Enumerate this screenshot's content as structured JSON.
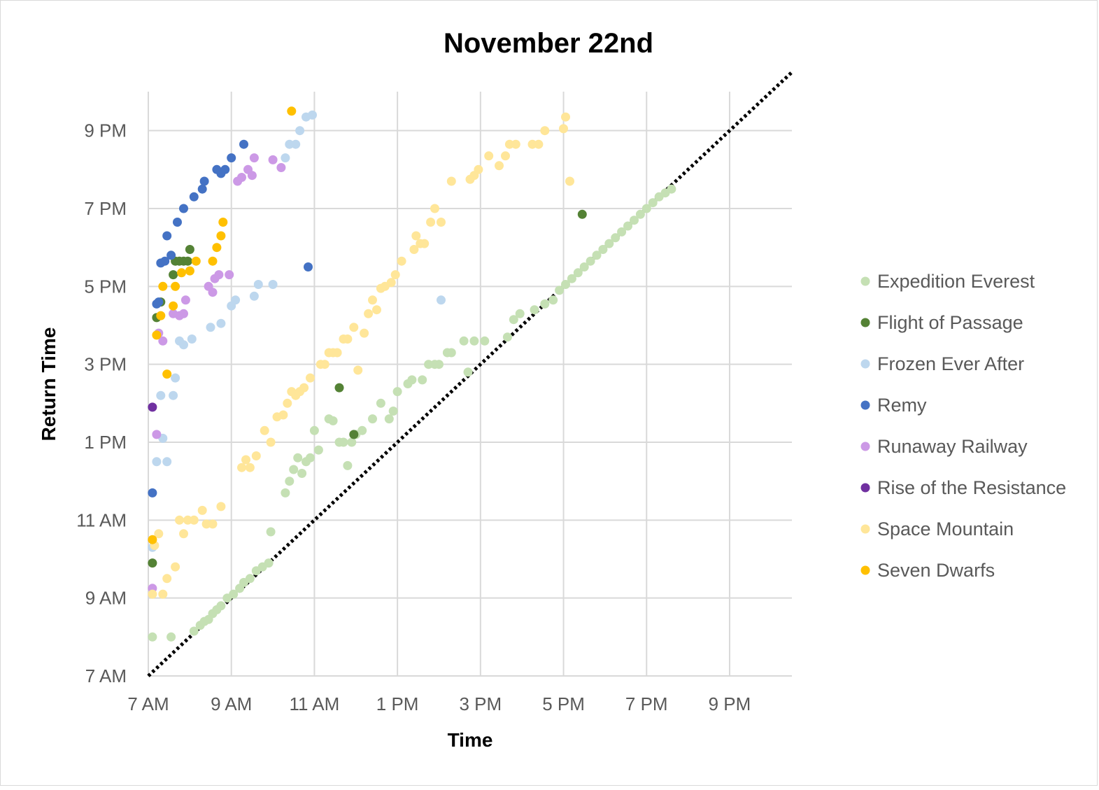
{
  "chart_data": {
    "type": "scatter",
    "title": "November 22nd",
    "xlabel": "Time",
    "ylabel": "Return Time",
    "xlim": [
      7,
      22.5
    ],
    "ylim": [
      7,
      22
    ],
    "x_ticks": [
      {
        "value": 7,
        "label": "7 AM"
      },
      {
        "value": 9,
        "label": "9 AM"
      },
      {
        "value": 11,
        "label": "11 AM"
      },
      {
        "value": 13,
        "label": "1 PM"
      },
      {
        "value": 15,
        "label": "3 PM"
      },
      {
        "value": 17,
        "label": "5 PM"
      },
      {
        "value": 19,
        "label": "7 PM"
      },
      {
        "value": 21,
        "label": "9 PM"
      }
    ],
    "y_ticks": [
      {
        "value": 7,
        "label": "7 AM"
      },
      {
        "value": 9,
        "label": "9 AM"
      },
      {
        "value": 11,
        "label": "11 AM"
      },
      {
        "value": 13,
        "label": "1 PM"
      },
      {
        "value": 15,
        "label": "3 PM"
      },
      {
        "value": 17,
        "label": "5 PM"
      },
      {
        "value": 19,
        "label": "7 PM"
      },
      {
        "value": 21,
        "label": "9 PM"
      }
    ],
    "reference_line": {
      "from": [
        7,
        7
      ],
      "to": [
        22.5,
        22.5
      ],
      "style": "dotted"
    },
    "grid": true,
    "legend_position": "right",
    "series": [
      {
        "name": "Expedition Everest",
        "color": "#c5e0b4",
        "points": [
          [
            7.1,
            8.0
          ],
          [
            7.55,
            8.0
          ],
          [
            8.1,
            8.15
          ],
          [
            8.25,
            8.3
          ],
          [
            8.35,
            8.4
          ],
          [
            8.45,
            8.45
          ],
          [
            8.55,
            8.6
          ],
          [
            8.65,
            8.7
          ],
          [
            8.75,
            8.8
          ],
          [
            8.9,
            9.0
          ],
          [
            9.05,
            9.1
          ],
          [
            9.2,
            9.25
          ],
          [
            9.3,
            9.4
          ],
          [
            9.45,
            9.5
          ],
          [
            9.6,
            9.7
          ],
          [
            9.75,
            9.8
          ],
          [
            9.9,
            9.9
          ],
          [
            9.95,
            10.7
          ],
          [
            10.3,
            11.7
          ],
          [
            10.4,
            12.0
          ],
          [
            10.5,
            12.3
          ],
          [
            10.6,
            12.6
          ],
          [
            10.7,
            12.2
          ],
          [
            10.8,
            12.5
          ],
          [
            10.9,
            12.6
          ],
          [
            11.0,
            13.3
          ],
          [
            11.1,
            12.8
          ],
          [
            11.35,
            13.6
          ],
          [
            11.45,
            13.55
          ],
          [
            11.6,
            13.0
          ],
          [
            11.7,
            13.0
          ],
          [
            11.8,
            12.4
          ],
          [
            11.9,
            13.0
          ],
          [
            12.0,
            13.2
          ],
          [
            12.15,
            13.3
          ],
          [
            12.4,
            13.6
          ],
          [
            12.6,
            14.0
          ],
          [
            12.8,
            13.6
          ],
          [
            12.9,
            13.8
          ],
          [
            13.0,
            14.3
          ],
          [
            13.25,
            14.5
          ],
          [
            13.35,
            14.6
          ],
          [
            13.6,
            14.6
          ],
          [
            13.75,
            15.0
          ],
          [
            13.9,
            15.0
          ],
          [
            14.0,
            15.0
          ],
          [
            14.2,
            15.3
          ],
          [
            14.3,
            15.3
          ],
          [
            14.6,
            15.6
          ],
          [
            14.7,
            14.8
          ],
          [
            14.85,
            15.6
          ],
          [
            15.1,
            15.6
          ],
          [
            15.65,
            15.7
          ],
          [
            15.8,
            16.15
          ],
          [
            15.95,
            16.3
          ],
          [
            16.3,
            16.4
          ],
          [
            16.55,
            16.55
          ],
          [
            16.75,
            16.65
          ],
          [
            16.9,
            16.9
          ],
          [
            17.05,
            17.05
          ],
          [
            17.2,
            17.2
          ],
          [
            17.35,
            17.35
          ],
          [
            17.5,
            17.5
          ],
          [
            17.65,
            17.65
          ],
          [
            17.8,
            17.8
          ],
          [
            17.95,
            17.95
          ],
          [
            18.1,
            18.1
          ],
          [
            18.25,
            18.25
          ],
          [
            18.4,
            18.4
          ],
          [
            18.55,
            18.55
          ],
          [
            18.7,
            18.7
          ],
          [
            18.85,
            18.85
          ],
          [
            19.0,
            19.0
          ],
          [
            19.15,
            19.15
          ],
          [
            19.3,
            19.3
          ],
          [
            19.45,
            19.4
          ],
          [
            19.6,
            19.5
          ]
        ]
      },
      {
        "name": "Flight of Passage",
        "color": "#548235",
        "points": [
          [
            7.1,
            9.9
          ],
          [
            7.2,
            16.2
          ],
          [
            7.3,
            16.6
          ],
          [
            7.6,
            17.3
          ],
          [
            7.65,
            17.65
          ],
          [
            7.75,
            17.65
          ],
          [
            7.85,
            17.65
          ],
          [
            7.95,
            17.65
          ],
          [
            8.0,
            17.95
          ],
          [
            11.6,
            14.4
          ],
          [
            11.95,
            13.2
          ],
          [
            17.45,
            18.85
          ]
        ]
      },
      {
        "name": "Frozen Ever After",
        "color": "#bdd7ee",
        "points": [
          [
            7.1,
            10.3
          ],
          [
            7.2,
            12.5
          ],
          [
            7.3,
            14.2
          ],
          [
            7.35,
            13.1
          ],
          [
            7.45,
            12.5
          ],
          [
            7.6,
            14.2
          ],
          [
            7.65,
            14.65
          ],
          [
            7.75,
            15.6
          ],
          [
            7.85,
            15.5
          ],
          [
            8.05,
            15.65
          ],
          [
            8.5,
            15.95
          ],
          [
            8.75,
            16.05
          ],
          [
            9.0,
            16.5
          ],
          [
            9.1,
            16.65
          ],
          [
            9.55,
            16.75
          ],
          [
            9.65,
            17.05
          ],
          [
            10.0,
            17.05
          ],
          [
            10.3,
            20.3
          ],
          [
            10.4,
            20.65
          ],
          [
            10.55,
            20.65
          ],
          [
            10.65,
            21.0
          ],
          [
            10.8,
            21.35
          ],
          [
            10.95,
            21.4
          ],
          [
            14.05,
            16.65
          ]
        ]
      },
      {
        "name": "Remy",
        "color": "#4472c4",
        "points": [
          [
            7.1,
            11.7
          ],
          [
            7.2,
            16.55
          ],
          [
            7.25,
            16.6
          ],
          [
            7.3,
            17.6
          ],
          [
            7.4,
            17.65
          ],
          [
            7.45,
            18.3
          ],
          [
            7.55,
            17.8
          ],
          [
            7.7,
            18.65
          ],
          [
            7.85,
            19.0
          ],
          [
            8.1,
            19.3
          ],
          [
            8.3,
            19.5
          ],
          [
            8.35,
            19.7
          ],
          [
            8.65,
            20.0
          ],
          [
            8.75,
            19.9
          ],
          [
            8.85,
            20.0
          ],
          [
            9.0,
            20.3
          ],
          [
            9.3,
            20.65
          ],
          [
            10.85,
            17.5
          ]
        ]
      },
      {
        "name": "Runaway Railway",
        "color": "#cc99e6",
        "points": [
          [
            7.1,
            9.25
          ],
          [
            7.2,
            13.2
          ],
          [
            7.25,
            15.8
          ],
          [
            7.35,
            15.6
          ],
          [
            7.6,
            16.3
          ],
          [
            7.75,
            16.25
          ],
          [
            7.85,
            16.3
          ],
          [
            7.9,
            16.65
          ],
          [
            8.45,
            17.0
          ],
          [
            8.55,
            16.85
          ],
          [
            8.6,
            17.2
          ],
          [
            8.7,
            17.3
          ],
          [
            8.95,
            17.3
          ],
          [
            9.15,
            19.7
          ],
          [
            9.25,
            19.8
          ],
          [
            9.4,
            20.0
          ],
          [
            9.5,
            19.85
          ],
          [
            9.55,
            20.3
          ],
          [
            10.0,
            20.25
          ],
          [
            10.2,
            20.05
          ]
        ]
      },
      {
        "name": "Rise of the Resistance",
        "color": "#7030a0",
        "points": [
          [
            7.1,
            13.9
          ]
        ]
      },
      {
        "name": "Space Mountain",
        "color": "#ffe699",
        "points": [
          [
            7.1,
            9.1
          ],
          [
            7.15,
            10.35
          ],
          [
            7.25,
            10.65
          ],
          [
            7.35,
            9.1
          ],
          [
            7.45,
            9.5
          ],
          [
            7.65,
            9.8
          ],
          [
            7.75,
            11.0
          ],
          [
            7.85,
            10.65
          ],
          [
            7.95,
            11.0
          ],
          [
            8.1,
            11.0
          ],
          [
            8.3,
            11.25
          ],
          [
            8.4,
            10.9
          ],
          [
            8.55,
            10.9
          ],
          [
            8.75,
            11.35
          ],
          [
            9.25,
            12.35
          ],
          [
            9.35,
            12.55
          ],
          [
            9.45,
            12.35
          ],
          [
            9.6,
            12.65
          ],
          [
            9.8,
            13.3
          ],
          [
            9.95,
            13.0
          ],
          [
            10.1,
            13.65
          ],
          [
            10.25,
            13.7
          ],
          [
            10.35,
            14.0
          ],
          [
            10.45,
            14.3
          ],
          [
            10.55,
            14.2
          ],
          [
            10.65,
            14.3
          ],
          [
            10.75,
            14.4
          ],
          [
            10.9,
            14.65
          ],
          [
            11.15,
            15.0
          ],
          [
            11.25,
            15.0
          ],
          [
            11.35,
            15.3
          ],
          [
            11.45,
            15.3
          ],
          [
            11.55,
            15.3
          ],
          [
            11.7,
            15.65
          ],
          [
            11.8,
            15.65
          ],
          [
            11.95,
            15.95
          ],
          [
            12.05,
            14.85
          ],
          [
            12.2,
            15.8
          ],
          [
            12.3,
            16.3
          ],
          [
            12.4,
            16.65
          ],
          [
            12.5,
            16.4
          ],
          [
            12.6,
            16.95
          ],
          [
            12.7,
            17.0
          ],
          [
            12.85,
            17.1
          ],
          [
            12.95,
            17.3
          ],
          [
            13.1,
            17.65
          ],
          [
            13.4,
            17.95
          ],
          [
            13.45,
            18.3
          ],
          [
            13.55,
            18.1
          ],
          [
            13.65,
            18.1
          ],
          [
            13.8,
            18.65
          ],
          [
            13.9,
            19.0
          ],
          [
            14.05,
            18.65
          ],
          [
            14.3,
            19.7
          ],
          [
            14.75,
            19.75
          ],
          [
            14.85,
            19.85
          ],
          [
            14.95,
            20.0
          ],
          [
            15.2,
            20.35
          ],
          [
            15.45,
            20.1
          ],
          [
            15.6,
            20.35
          ],
          [
            15.7,
            20.65
          ],
          [
            15.85,
            20.65
          ],
          [
            16.25,
            20.65
          ],
          [
            16.4,
            20.65
          ],
          [
            16.55,
            21.0
          ],
          [
            17.0,
            21.05
          ],
          [
            17.05,
            21.35
          ],
          [
            17.15,
            19.7
          ]
        ]
      },
      {
        "name": "Seven Dwarfs",
        "color": "#ffc000",
        "points": [
          [
            7.1,
            10.5
          ],
          [
            7.2,
            15.75
          ],
          [
            7.3,
            16.25
          ],
          [
            7.35,
            17.0
          ],
          [
            7.45,
            14.75
          ],
          [
            7.6,
            16.5
          ],
          [
            7.65,
            17.0
          ],
          [
            7.8,
            17.35
          ],
          [
            8.0,
            17.4
          ],
          [
            8.15,
            17.65
          ],
          [
            8.55,
            17.65
          ],
          [
            8.65,
            18.0
          ],
          [
            8.75,
            18.3
          ],
          [
            8.8,
            18.65
          ],
          [
            10.45,
            21.5
          ]
        ]
      }
    ]
  }
}
